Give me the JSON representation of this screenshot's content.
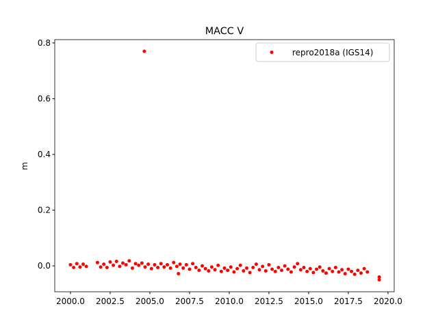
{
  "chart_data": {
    "type": "scatter",
    "title": "MACC V",
    "ylabel": "m",
    "legend": "upper right",
    "xlim": [
      1999.01,
      2020.39
    ],
    "ylim": [
      -0.093,
      0.812
    ],
    "xticks": [
      {
        "value": 2000,
        "label": "2000.0"
      },
      {
        "value": 2002.5,
        "label": "2002.5"
      },
      {
        "value": 2005,
        "label": "2005.0"
      },
      {
        "value": 2007.5,
        "label": "2007.5"
      },
      {
        "value": 2010,
        "label": "2010.0"
      },
      {
        "value": 2012.5,
        "label": "2012.5"
      },
      {
        "value": 2015,
        "label": "2015.0"
      },
      {
        "value": 2017.5,
        "label": "2017.5"
      },
      {
        "value": 2020,
        "label": "2020.0"
      }
    ],
    "yticks": [
      {
        "value": 0,
        "label": "0.0"
      },
      0.2,
      0.4,
      0.6,
      0.8
    ],
    "series": [
      {
        "name": "repro2018a (IGS14)",
        "color": "#ff0000",
        "x": [
          2000.0,
          2000.2,
          2000.4,
          2000.6,
          2000.8,
          2001.0,
          2001.7,
          2001.9,
          2002.1,
          2002.3,
          2002.5,
          2002.7,
          2002.9,
          2003.1,
          2003.3,
          2003.5,
          2003.7,
          2003.9,
          2004.1,
          2004.3,
          2004.5,
          2004.65,
          2004.7,
          2004.9,
          2005.1,
          2005.3,
          2005.5,
          2005.7,
          2005.9,
          2006.1,
          2006.3,
          2006.5,
          2006.7,
          2006.8,
          2006.9,
          2007.1,
          2007.3,
          2007.5,
          2007.7,
          2007.9,
          2008.1,
          2008.3,
          2008.5,
          2008.7,
          2008.9,
          2009.1,
          2009.3,
          2009.5,
          2009.7,
          2009.9,
          2010.1,
          2010.3,
          2010.5,
          2010.7,
          2010.9,
          2011.1,
          2011.3,
          2011.5,
          2011.7,
          2011.9,
          2012.1,
          2012.3,
          2012.5,
          2012.7,
          2012.9,
          2013.1,
          2013.3,
          2013.5,
          2013.7,
          2013.9,
          2014.1,
          2014.3,
          2014.5,
          2014.7,
          2014.9,
          2015.1,
          2015.3,
          2015.5,
          2015.7,
          2015.9,
          2016.1,
          2016.3,
          2016.5,
          2016.7,
          2016.9,
          2017.1,
          2017.3,
          2017.5,
          2017.7,
          2017.9,
          2018.1,
          2018.3,
          2018.5,
          2018.7,
          2019.45,
          2019.45
        ],
        "values": [
          0.004,
          -0.006,
          0.008,
          -0.004,
          0.006,
          -0.002,
          0.012,
          -0.004,
          0.006,
          -0.006,
          0.014,
          0.002,
          0.016,
          -0.002,
          0.01,
          0.004,
          0.018,
          -0.008,
          0.008,
          0.002,
          0.01,
          0.77,
          -0.004,
          0.006,
          -0.01,
          0.004,
          -0.006,
          0.008,
          -0.004,
          0.004,
          -0.008,
          0.012,
          -0.002,
          -0.028,
          0.006,
          -0.008,
          0.004,
          -0.012,
          0.008,
          -0.006,
          -0.016,
          0.0,
          -0.01,
          -0.018,
          -0.004,
          -0.014,
          0.002,
          -0.02,
          -0.008,
          -0.016,
          -0.004,
          -0.022,
          -0.01,
          0.002,
          -0.018,
          -0.008,
          -0.024,
          -0.006,
          0.006,
          -0.014,
          -0.002,
          -0.018,
          0.004,
          -0.012,
          -0.02,
          -0.006,
          -0.016,
          0.0,
          -0.012,
          -0.022,
          -0.004,
          0.008,
          -0.014,
          -0.006,
          -0.02,
          -0.01,
          -0.024,
          -0.012,
          -0.004,
          -0.018,
          -0.026,
          -0.01,
          -0.02,
          -0.006,
          -0.022,
          -0.014,
          -0.028,
          -0.012,
          -0.02,
          -0.03,
          -0.016,
          -0.026,
          -0.01,
          -0.022,
          -0.04,
          -0.05
        ]
      }
    ]
  }
}
